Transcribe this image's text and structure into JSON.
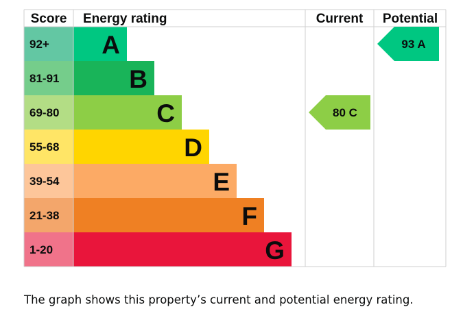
{
  "chart_data": {
    "type": "bar",
    "title": "Energy rating",
    "headers": {
      "score": "Score",
      "rating": "Energy rating",
      "current": "Current",
      "potential": "Potential"
    },
    "bands": [
      {
        "letter": "A",
        "range": "92+",
        "color": "#00c781",
        "light": "#63c7a3"
      },
      {
        "letter": "B",
        "range": "81-91",
        "color": "#19b459",
        "light": "#75cd8b"
      },
      {
        "letter": "C",
        "range": "69-80",
        "color": "#8dce46",
        "light": "#b3dd85"
      },
      {
        "letter": "D",
        "range": "55-68",
        "color": "#ffd500",
        "light": "#ffe566"
      },
      {
        "letter": "E",
        "range": "39-54",
        "color": "#fcaa65",
        "light": "#fdc69a"
      },
      {
        "letter": "F",
        "range": "21-38",
        "color": "#ef8023",
        "light": "#f3a66b"
      },
      {
        "letter": "G",
        "range": "1-20",
        "color": "#e9153b",
        "light": "#f0738a"
      }
    ],
    "current": {
      "value": 80,
      "letter": "C",
      "label": "80  C"
    },
    "potential": {
      "value": 93,
      "letter": "A",
      "label": "93  A"
    }
  },
  "caption": "The graph shows this property’s current and potential energy rating."
}
